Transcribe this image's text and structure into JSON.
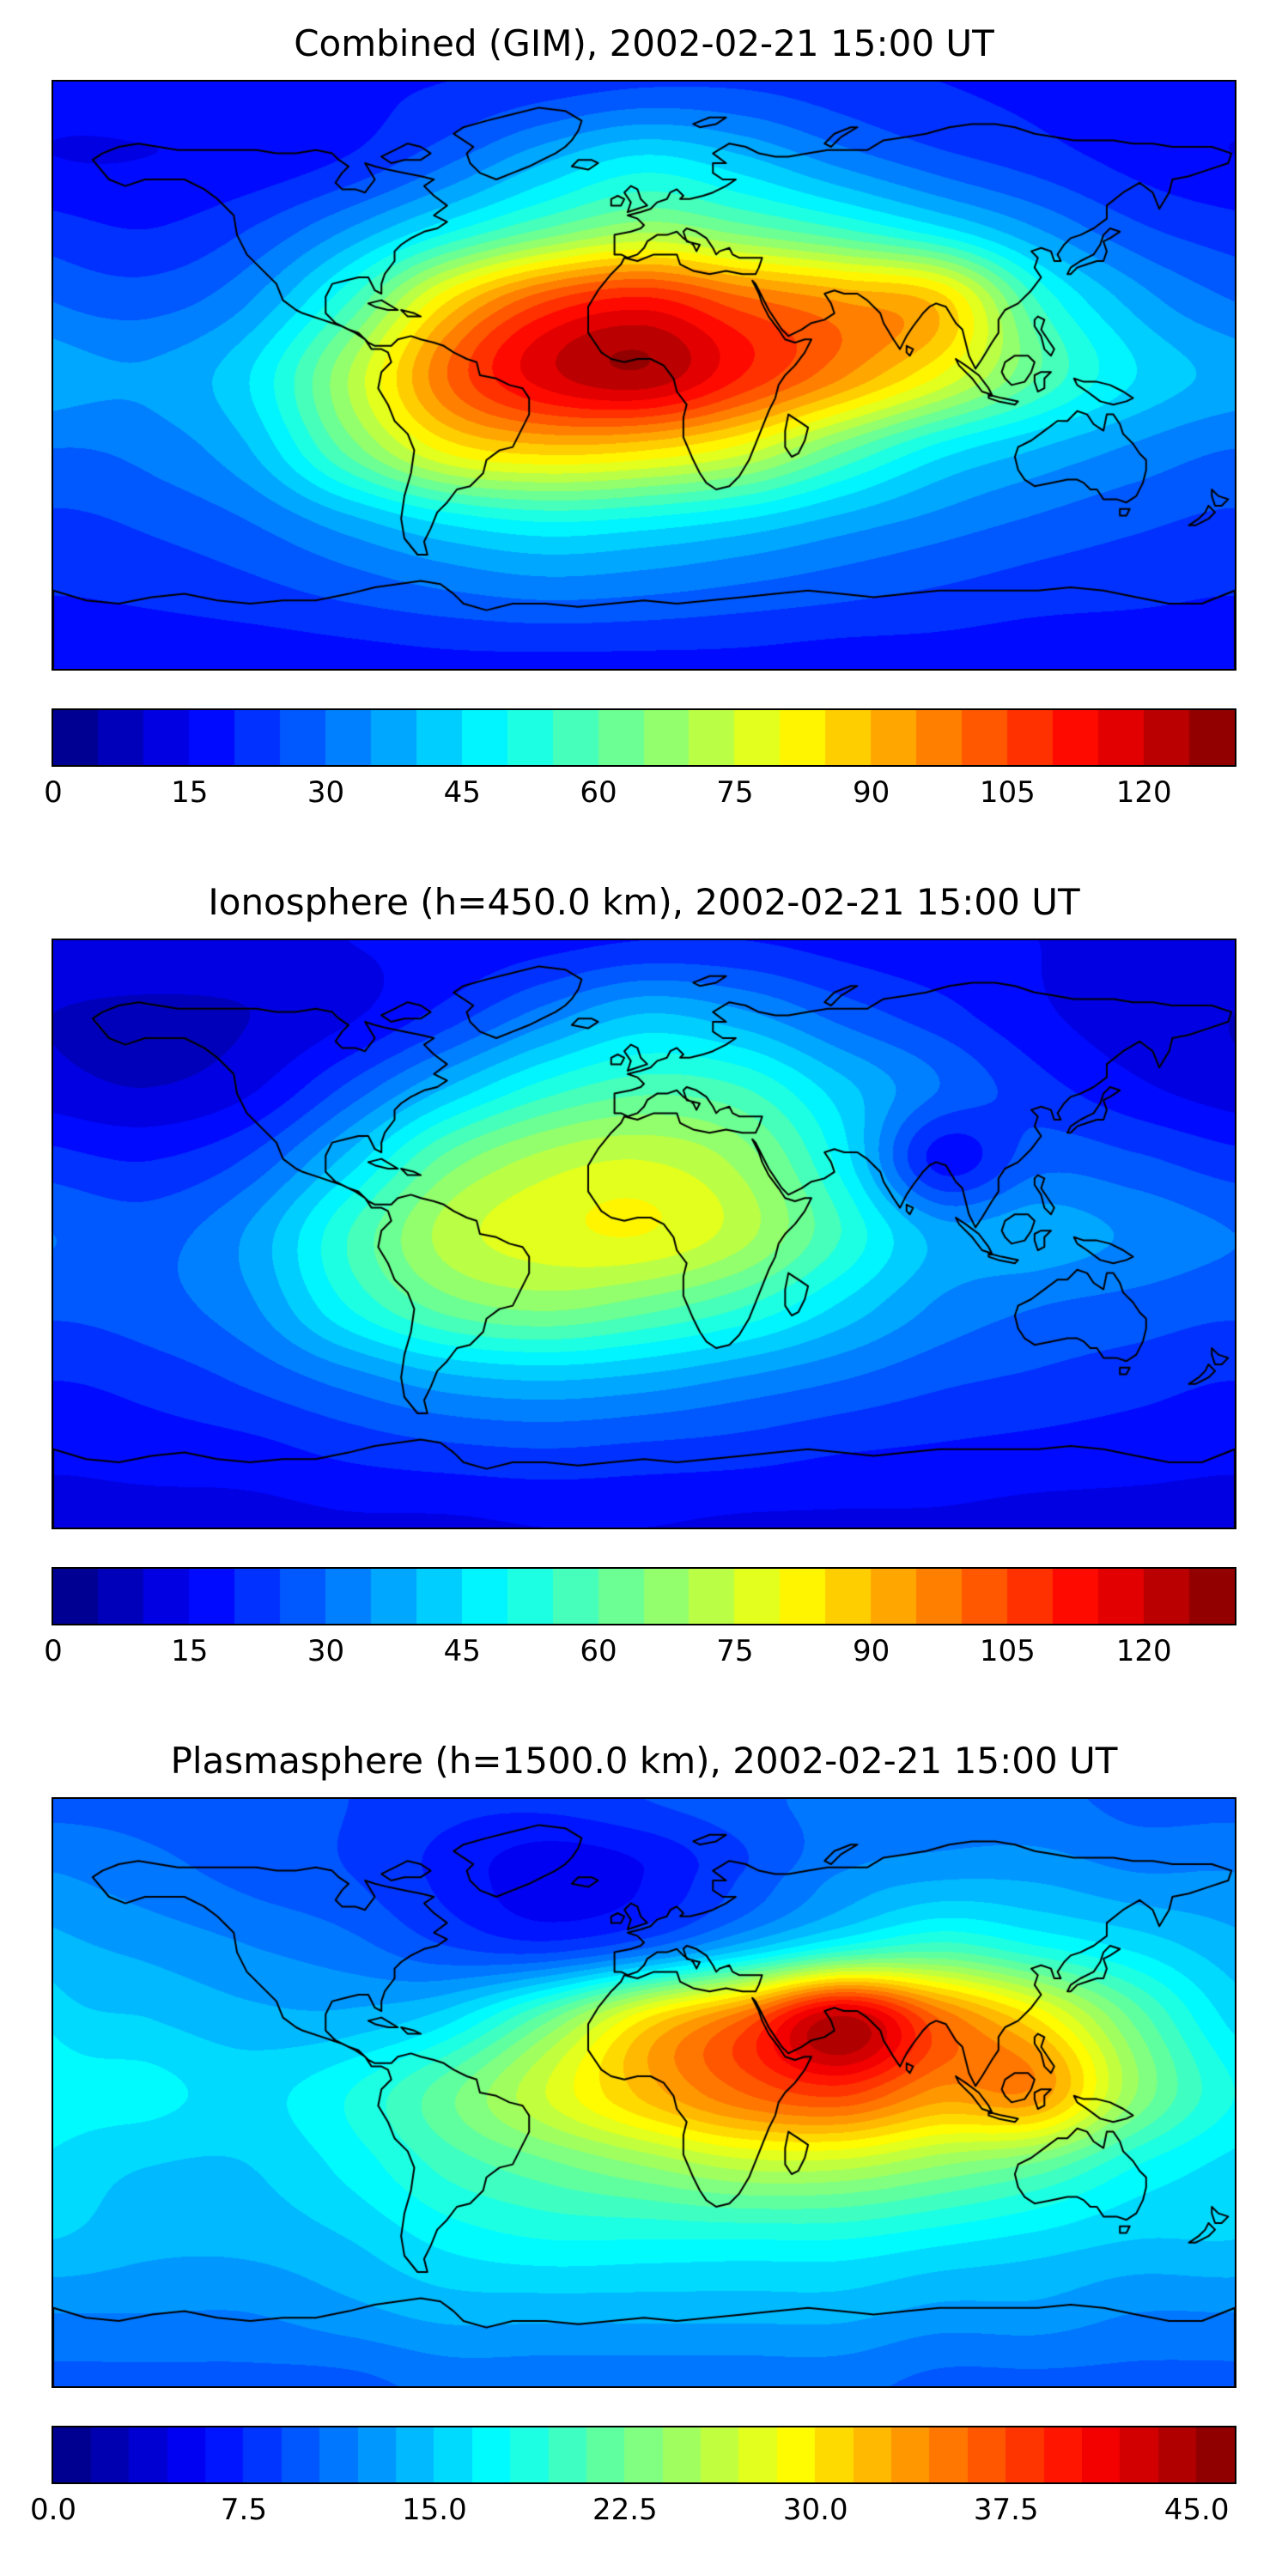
{
  "chart_data": [
    {
      "type": "heatmap",
      "title": "Combined (GIM), 2002-02-21 15:00 UT",
      "projection": "equirectangular-world-map-with-coastlines",
      "lon_range": [
        -180,
        180
      ],
      "lat_range": [
        -90,
        90
      ],
      "colormap": "jet",
      "vmin": 0,
      "vmax": 130,
      "level_step": 5,
      "colorbar_ticks": [
        0,
        15,
        30,
        45,
        60,
        75,
        90,
        105,
        120
      ],
      "colorbar_tick_labels": [
        "0",
        "15",
        "30",
        "45",
        "60",
        "75",
        "90",
        "105",
        "120"
      ],
      "lon": [
        -180,
        -150,
        -120,
        -90,
        -60,
        -30,
        0,
        30,
        60,
        90,
        120,
        150,
        180
      ],
      "lat": [
        90,
        67.5,
        45,
        22.5,
        0,
        -22.5,
        -45,
        -67.5,
        -90
      ],
      "values": [
        [
          18,
          18,
          18,
          19,
          20,
          22,
          24,
          24,
          22,
          20,
          19,
          18,
          18
        ],
        [
          15,
          15,
          16,
          20,
          28,
          38,
          45,
          40,
          32,
          26,
          22,
          18,
          15
        ],
        [
          22,
          20,
          25,
          35,
          48,
          60,
          68,
          62,
          55,
          46,
          35,
          26,
          22
        ],
        [
          30,
          28,
          35,
          55,
          85,
          105,
          112,
          102,
          95,
          88,
          55,
          38,
          30
        ],
        [
          38,
          36,
          45,
          70,
          100,
          118,
          124,
          110,
          96,
          80,
          60,
          45,
          38
        ],
        [
          30,
          32,
          40,
          62,
          82,
          88,
          86,
          78,
          62,
          48,
          40,
          34,
          30
        ],
        [
          24,
          26,
          30,
          38,
          46,
          50,
          48,
          44,
          38,
          33,
          29,
          26,
          24
        ],
        [
          20,
          21,
          23,
          26,
          29,
          31,
          30,
          28,
          26,
          24,
          22,
          21,
          20
        ],
        [
          16,
          16,
          16,
          17,
          18,
          18,
          18,
          18,
          17,
          17,
          16,
          16,
          16
        ]
      ]
    },
    {
      "type": "heatmap",
      "title": "Ionosphere  (h=450.0 km), 2002-02-21 15:00 UT",
      "projection": "equirectangular-world-map-with-coastlines",
      "lon_range": [
        -180,
        180
      ],
      "lat_range": [
        -90,
        90
      ],
      "colormap": "jet",
      "vmin": 0,
      "vmax": 130,
      "level_step": 5,
      "colorbar_ticks": [
        0,
        15,
        30,
        45,
        60,
        75,
        90,
        105,
        120
      ],
      "colorbar_tick_labels": [
        "0",
        "15",
        "30",
        "45",
        "60",
        "75",
        "90",
        "105",
        "120"
      ],
      "lon": [
        -180,
        -150,
        -120,
        -90,
        -60,
        -30,
        0,
        30,
        60,
        90,
        120,
        150,
        180
      ],
      "lat": [
        90,
        67.5,
        45,
        22.5,
        0,
        -22.5,
        -45,
        -67.5,
        -90
      ],
      "values": [
        [
          14,
          14,
          14,
          15,
          16,
          18,
          20,
          20,
          18,
          16,
          15,
          14,
          14
        ],
        [
          10,
          9,
          10,
          14,
          22,
          32,
          40,
          36,
          28,
          22,
          16,
          12,
          10
        ],
        [
          12,
          10,
          14,
          26,
          40,
          52,
          58,
          55,
          42,
          30,
          22,
          16,
          12
        ],
        [
          22,
          20,
          26,
          42,
          62,
          72,
          75,
          68,
          48,
          18,
          28,
          26,
          22
        ],
        [
          30,
          28,
          36,
          55,
          72,
          78,
          80,
          72,
          55,
          38,
          38,
          34,
          30
        ],
        [
          26,
          28,
          34,
          50,
          62,
          66,
          62,
          55,
          44,
          34,
          30,
          28,
          26
        ],
        [
          20,
          22,
          26,
          32,
          38,
          40,
          38,
          34,
          30,
          26,
          24,
          22,
          20
        ],
        [
          16,
          17,
          18,
          21,
          23,
          24,
          23,
          22,
          20,
          19,
          18,
          17,
          16
        ],
        [
          13,
          13,
          13,
          14,
          14,
          15,
          15,
          14,
          14,
          14,
          13,
          13,
          13
        ]
      ]
    },
    {
      "type": "heatmap",
      "title": "Plasmasphere (h=1500.0 km), 2002-02-21 15:00 UT",
      "projection": "equirectangular-world-map-with-coastlines",
      "lon_range": [
        -180,
        180
      ],
      "lat_range": [
        -90,
        90
      ],
      "colormap": "jet",
      "vmin": 0,
      "vmax": 46.5,
      "level_step": 1.5,
      "colorbar_ticks": [
        0,
        7.5,
        15,
        22.5,
        30,
        37.5,
        45
      ],
      "colorbar_tick_labels": [
        "0.0",
        "7.5",
        "15.0",
        "22.5",
        "30.0",
        "37.5",
        "45.0"
      ],
      "lon": [
        -180,
        -150,
        -120,
        -90,
        -60,
        -30,
        0,
        30,
        60,
        90,
        120,
        150,
        180
      ],
      "lat": [
        90,
        67.5,
        45,
        22.5,
        0,
        -22.5,
        -45,
        -67.5,
        -90
      ],
      "values": [
        [
          10,
          10,
          10,
          9,
          8,
          8,
          9,
          10,
          11,
          11,
          11,
          10,
          10
        ],
        [
          12,
          11,
          10,
          9,
          7,
          5,
          6,
          9,
          12,
          13,
          13,
          12,
          12
        ],
        [
          14,
          13,
          12,
          11,
          9,
          8,
          10,
          14,
          18,
          20,
          18,
          16,
          14
        ],
        [
          16,
          15,
          14,
          14,
          16,
          22,
          30,
          36,
          44,
          36,
          30,
          22,
          16
        ],
        [
          18,
          17,
          16,
          18,
          22,
          27,
          32,
          36,
          38,
          34,
          34,
          24,
          18
        ],
        [
          16,
          15,
          15,
          17,
          20,
          22,
          24,
          26,
          26,
          24,
          22,
          18,
          16
        ],
        [
          15,
          14,
          14,
          15,
          17,
          18,
          18,
          18,
          18,
          17,
          16,
          15,
          15
        ],
        [
          12,
          12,
          12,
          13,
          14,
          14,
          14,
          14,
          14,
          13,
          13,
          12,
          12
        ],
        [
          10,
          10,
          10,
          10,
          11,
          11,
          11,
          11,
          11,
          10,
          10,
          10,
          10
        ]
      ]
    }
  ]
}
